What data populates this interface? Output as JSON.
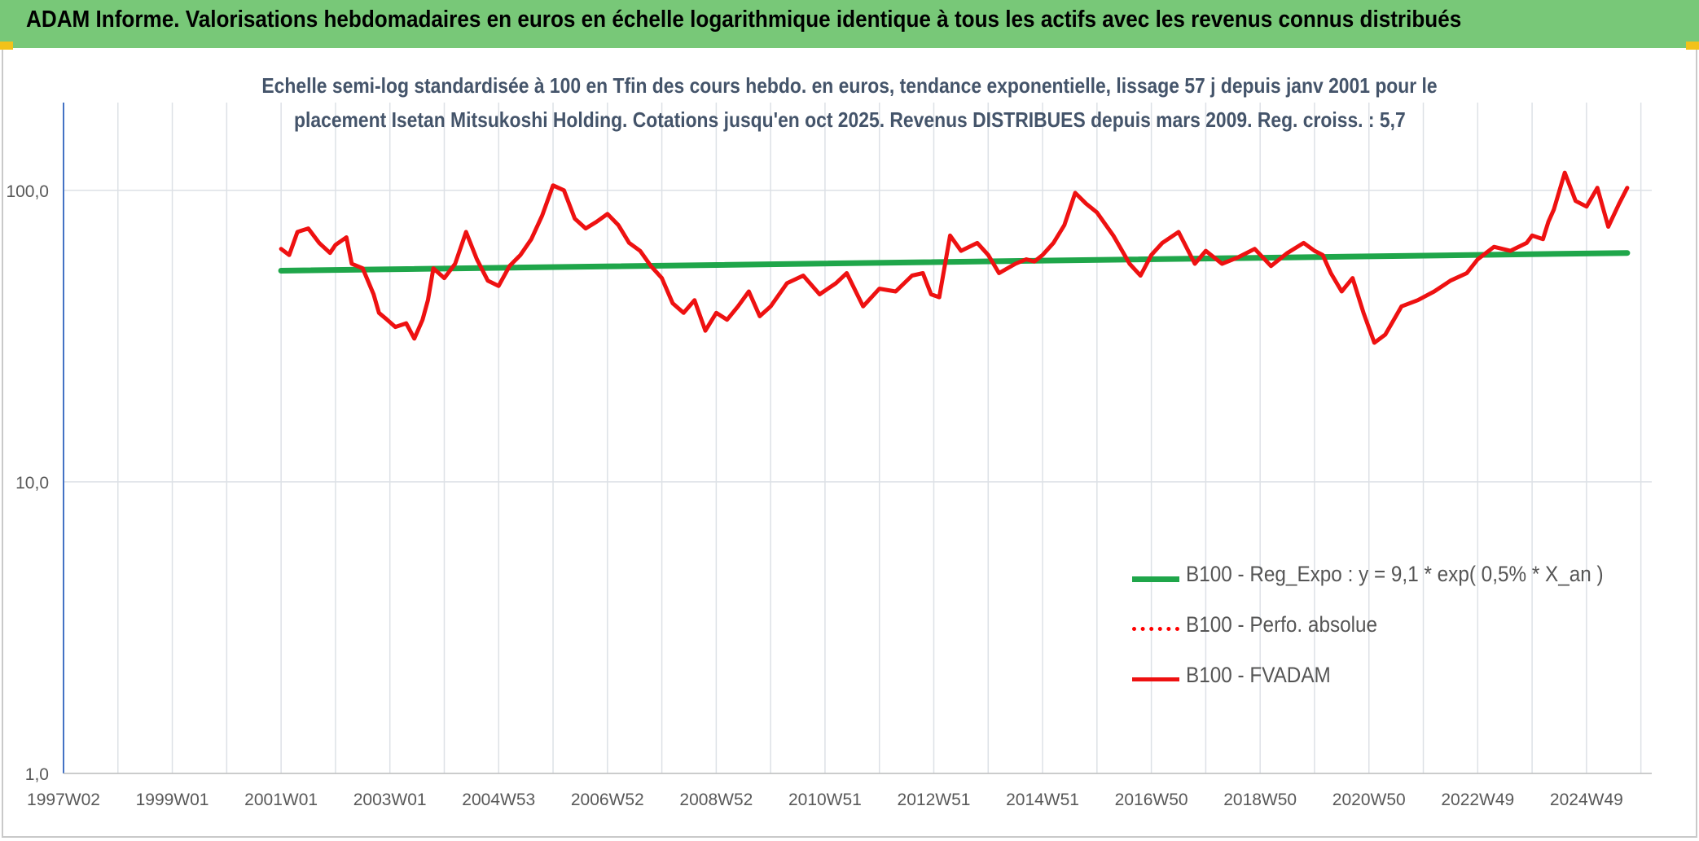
{
  "banner": {
    "title": "ADAM Informe. Valorisations hebdomadaires en euros en échelle logarithmique identique à tous les actifs avec les revenus connus distribués"
  },
  "colors": {
    "banner": "#78c878",
    "regression": "#1fa64a",
    "perf": "#ff0000",
    "fvadam": "#ee1111",
    "grid": "#dde1e6",
    "axis": "#4472c4"
  },
  "chart_data": {
    "type": "line",
    "title_line1": "Echelle semi-log standardisée à 100 en Tfin des cours hebdo. en euros, tendance exponentielle, lissage 57 j depuis janv 2001 pour le",
    "title_line2": "placement Isetan Mitsukoshi Holding. Cotations jusqu'en oct 2025. Revenus DISTRIBUES depuis mars 2009. Reg. croiss. : 5,7",
    "y_scale": "log",
    "ylim": [
      1,
      200
    ],
    "y_ticks": [
      {
        "value": 1,
        "label": "1,0"
      },
      {
        "value": 10,
        "label": "10,0"
      },
      {
        "value": 100,
        "label": "100,0"
      }
    ],
    "xlim": [
      1997.0,
      2026.2
    ],
    "x_ticks": [
      {
        "value": 1997.0,
        "label": "1997W02"
      },
      {
        "value": 1999.0,
        "label": "1999W01"
      },
      {
        "value": 2001.0,
        "label": "2001W01"
      },
      {
        "value": 2003.0,
        "label": "2003W01"
      },
      {
        "value": 2005.0,
        "label": "2004W53"
      },
      {
        "value": 2007.0,
        "label": "2006W52"
      },
      {
        "value": 2009.0,
        "label": "2008W52"
      },
      {
        "value": 2011.0,
        "label": "2010W51"
      },
      {
        "value": 2013.0,
        "label": "2012W51"
      },
      {
        "value": 2015.0,
        "label": "2014W51"
      },
      {
        "value": 2017.0,
        "label": "2016W50"
      },
      {
        "value": 2019.0,
        "label": "2018W50"
      },
      {
        "value": 2021.0,
        "label": "2020W50"
      },
      {
        "value": 2023.0,
        "label": "2022W49"
      },
      {
        "value": 2025.0,
        "label": "2024W49"
      }
    ],
    "legend_position": "bottom-right",
    "series": [
      {
        "name": "B100 - Reg_Expo : y = 9,1 * exp( 0,5% *  X_an )",
        "style": "solid-thick",
        "color": "#1fa64a",
        "x": [
          2001.0,
          2025.75
        ],
        "y": [
          53,
          61
        ]
      },
      {
        "name": "B100 - Perfo. absolue",
        "style": "dotted",
        "color": "#ff0000",
        "x": [],
        "y": []
      },
      {
        "name": "B100 - FVADAM",
        "style": "solid",
        "color": "#ee1111",
        "x": [
          2001.0,
          2001.15,
          2001.3,
          2001.5,
          2001.7,
          2001.9,
          2002.0,
          2002.2,
          2002.3,
          2002.5,
          2002.7,
          2002.8,
          2002.95,
          2003.1,
          2003.3,
          2003.45,
          2003.6,
          2003.7,
          2003.8,
          2004.0,
          2004.2,
          2004.4,
          2004.6,
          2004.8,
          2005.0,
          2005.2,
          2005.4,
          2005.6,
          2005.8,
          2006.0,
          2006.2,
          2006.4,
          2006.6,
          2006.8,
          2007.0,
          2007.2,
          2007.4,
          2007.6,
          2007.8,
          2008.0,
          2008.2,
          2008.4,
          2008.6,
          2008.8,
          2009.0,
          2009.2,
          2009.4,
          2009.6,
          2009.8,
          2010.0,
          2010.3,
          2010.6,
          2010.9,
          2011.2,
          2011.4,
          2011.7,
          2012.0,
          2012.3,
          2012.6,
          2012.8,
          2012.95,
          2013.1,
          2013.3,
          2013.5,
          2013.8,
          2014.0,
          2014.2,
          2014.5,
          2014.7,
          2014.85,
          2015.0,
          2015.2,
          2015.4,
          2015.6,
          2015.8,
          2016.0,
          2016.3,
          2016.6,
          2016.8,
          2017.0,
          2017.2,
          2017.5,
          2017.8,
          2018.0,
          2018.3,
          2018.6,
          2018.9,
          2019.2,
          2019.5,
          2019.8,
          2020.0,
          2020.15,
          2020.3,
          2020.5,
          2020.7,
          2020.9,
          2021.1,
          2021.3,
          2021.6,
          2021.9,
          2022.2,
          2022.5,
          2022.8,
          2023.0,
          2023.3,
          2023.6,
          2023.9,
          2024.0,
          2024.2,
          2024.3,
          2024.4,
          2024.6,
          2024.8,
          2025.0,
          2025.2,
          2025.4,
          2025.6,
          2025.75
        ],
        "y": [
          63,
          60,
          72,
          74,
          66,
          61,
          65,
          69,
          56,
          54,
          44,
          38,
          36,
          34,
          35,
          31,
          36,
          42,
          54,
          50,
          56,
          72,
          58,
          49,
          47,
          55,
          60,
          68,
          82,
          104,
          100,
          80,
          74,
          78,
          83,
          76,
          66,
          62,
          55,
          50,
          41,
          38,
          42,
          33,
          38,
          36,
          40,
          45,
          37,
          40,
          48,
          51,
          44,
          48,
          52,
          40,
          46,
          45,
          51,
          52,
          44,
          43,
          70,
          62,
          66,
          60,
          52,
          56,
          58,
          57,
          60,
          66,
          76,
          98,
          90,
          84,
          70,
          56,
          51,
          60,
          66,
          72,
          56,
          62,
          56,
          59,
          63,
          55,
          61,
          66,
          62,
          60,
          52,
          45,
          50,
          38,
          30,
          32,
          40,
          42,
          45,
          49,
          52,
          58,
          64,
          62,
          66,
          70,
          68,
          78,
          86,
          115,
          92,
          88,
          102,
          75,
          90,
          102
        ]
      }
    ]
  }
}
